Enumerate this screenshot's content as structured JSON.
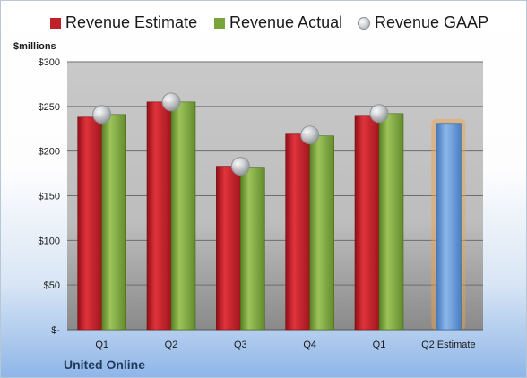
{
  "legend": {
    "estimate": "Revenue Estimate",
    "actual": "Revenue Actual",
    "gaap": "Revenue GAAP"
  },
  "unit_label": "$millions",
  "company": "United Online",
  "colors": {
    "estimate": "#c0202a",
    "actual": "#7aa33a",
    "gaap": "#b8bcc2",
    "forecast": "#5f93d4",
    "forecast_glow": "#f2a24a",
    "plot_bg": "#bfbfbf"
  },
  "chart_data": {
    "type": "bar",
    "categories": [
      "Q1",
      "Q2",
      "Q3",
      "Q4",
      "Q1",
      "Q2 Estimate"
    ],
    "series": [
      {
        "name": "Revenue Estimate",
        "values": [
          238,
          255,
          183,
          219,
          240,
          null
        ]
      },
      {
        "name": "Revenue Actual",
        "values": [
          241,
          255,
          182,
          217,
          242,
          null
        ]
      },
      {
        "name": "Revenue GAAP",
        "values": [
          241,
          255,
          183,
          218,
          242,
          null
        ]
      }
    ],
    "forecast": {
      "category": "Q2 Estimate",
      "value": 231
    },
    "ylim": [
      0,
      300
    ],
    "yticks": [
      0,
      50,
      100,
      150,
      200,
      250,
      300
    ],
    "ytick_labels": [
      "$-",
      "$50",
      "$100",
      "$150",
      "$200",
      "$250",
      "$300"
    ],
    "ylabel": "$millions",
    "legend_position": "top",
    "grid": true
  }
}
